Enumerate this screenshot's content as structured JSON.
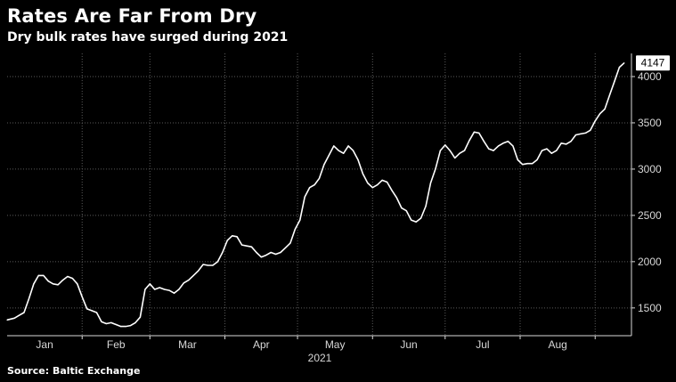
{
  "header": {
    "title": "Rates Are Far From Dry",
    "subtitle": "Dry bulk rates have surged during 2021"
  },
  "footer": {
    "source": "Source: Baltic Exchange"
  },
  "colors": {
    "background": "#000000",
    "line": "#ffffff",
    "grid": "#5a5a5a",
    "text": "#ffffff"
  },
  "chart_data": {
    "type": "line",
    "title": "Rates Are Far From Dry",
    "subtitle": "Dry bulk rates have surged during 2021",
    "xlabel": "2021",
    "ylabel": "",
    "x_tick_labels": [
      "Jan",
      "Feb",
      "Mar",
      "Apr",
      "May",
      "Jun",
      "Jul",
      "Aug"
    ],
    "y_ticks": [
      1500,
      2000,
      2500,
      3000,
      3500,
      4000
    ],
    "ylim": [
      1200,
      4250
    ],
    "grid": true,
    "y_axis_side": "right",
    "last_value_label": "4147",
    "series": [
      {
        "values": [
          [
            "2021-01-01",
            1370
          ],
          [
            "2021-01-04",
            1390
          ],
          [
            "2021-01-06",
            1420
          ],
          [
            "2021-01-08",
            1450
          ],
          [
            "2021-01-10",
            1600
          ],
          [
            "2021-01-12",
            1760
          ],
          [
            "2021-01-14",
            1850
          ],
          [
            "2021-01-16",
            1850
          ],
          [
            "2021-01-18",
            1790
          ],
          [
            "2021-01-20",
            1760
          ],
          [
            "2021-01-22",
            1750
          ],
          [
            "2021-01-24",
            1800
          ],
          [
            "2021-01-26",
            1840
          ],
          [
            "2021-01-28",
            1820
          ],
          [
            "2021-01-30",
            1760
          ],
          [
            "2021-02-01",
            1620
          ],
          [
            "2021-02-03",
            1490
          ],
          [
            "2021-02-05",
            1470
          ],
          [
            "2021-02-07",
            1450
          ],
          [
            "2021-02-09",
            1350
          ],
          [
            "2021-02-11",
            1330
          ],
          [
            "2021-02-13",
            1340
          ],
          [
            "2021-02-15",
            1320
          ],
          [
            "2021-02-17",
            1300
          ],
          [
            "2021-02-19",
            1300
          ],
          [
            "2021-02-21",
            1310
          ],
          [
            "2021-02-23",
            1340
          ],
          [
            "2021-02-25",
            1400
          ],
          [
            "2021-02-27",
            1700
          ],
          [
            "2021-03-01",
            1760
          ],
          [
            "2021-03-03",
            1700
          ],
          [
            "2021-03-05",
            1720
          ],
          [
            "2021-03-07",
            1700
          ],
          [
            "2021-03-09",
            1690
          ],
          [
            "2021-03-11",
            1660
          ],
          [
            "2021-03-13",
            1700
          ],
          [
            "2021-03-15",
            1770
          ],
          [
            "2021-03-17",
            1800
          ],
          [
            "2021-03-19",
            1850
          ],
          [
            "2021-03-21",
            1900
          ],
          [
            "2021-03-23",
            1970
          ],
          [
            "2021-03-25",
            1960
          ],
          [
            "2021-03-27",
            1960
          ],
          [
            "2021-03-29",
            2000
          ],
          [
            "2021-03-31",
            2100
          ],
          [
            "2021-04-02",
            2230
          ],
          [
            "2021-04-04",
            2280
          ],
          [
            "2021-04-06",
            2270
          ],
          [
            "2021-04-08",
            2180
          ],
          [
            "2021-04-10",
            2170
          ],
          [
            "2021-04-12",
            2160
          ],
          [
            "2021-04-14",
            2100
          ],
          [
            "2021-04-16",
            2050
          ],
          [
            "2021-04-18",
            2070
          ],
          [
            "2021-04-20",
            2100
          ],
          [
            "2021-04-22",
            2080
          ],
          [
            "2021-04-24",
            2100
          ],
          [
            "2021-04-26",
            2150
          ],
          [
            "2021-04-28",
            2200
          ],
          [
            "2021-04-30",
            2350
          ],
          [
            "2021-05-02",
            2450
          ],
          [
            "2021-05-04",
            2700
          ],
          [
            "2021-05-06",
            2800
          ],
          [
            "2021-05-08",
            2830
          ],
          [
            "2021-05-10",
            2900
          ],
          [
            "2021-05-12",
            3050
          ],
          [
            "2021-05-14",
            3150
          ],
          [
            "2021-05-16",
            3250
          ],
          [
            "2021-05-18",
            3200
          ],
          [
            "2021-05-20",
            3170
          ],
          [
            "2021-05-22",
            3250
          ],
          [
            "2021-05-24",
            3200
          ],
          [
            "2021-05-26",
            3100
          ],
          [
            "2021-05-28",
            2950
          ],
          [
            "2021-05-30",
            2850
          ],
          [
            "2021-06-01",
            2800
          ],
          [
            "2021-06-03",
            2830
          ],
          [
            "2021-06-05",
            2880
          ],
          [
            "2021-06-07",
            2860
          ],
          [
            "2021-06-09",
            2770
          ],
          [
            "2021-06-11",
            2690
          ],
          [
            "2021-06-13",
            2580
          ],
          [
            "2021-06-15",
            2550
          ],
          [
            "2021-06-17",
            2450
          ],
          [
            "2021-06-19",
            2430
          ],
          [
            "2021-06-21",
            2470
          ],
          [
            "2021-06-23",
            2600
          ],
          [
            "2021-06-25",
            2850
          ],
          [
            "2021-06-27",
            3000
          ],
          [
            "2021-06-29",
            3200
          ],
          [
            "2021-07-01",
            3260
          ],
          [
            "2021-07-03",
            3200
          ],
          [
            "2021-07-05",
            3120
          ],
          [
            "2021-07-07",
            3170
          ],
          [
            "2021-07-09",
            3200
          ],
          [
            "2021-07-11",
            3310
          ],
          [
            "2021-07-13",
            3400
          ],
          [
            "2021-07-15",
            3390
          ],
          [
            "2021-07-17",
            3300
          ],
          [
            "2021-07-19",
            3220
          ],
          [
            "2021-07-21",
            3200
          ],
          [
            "2021-07-23",
            3250
          ],
          [
            "2021-07-25",
            3280
          ],
          [
            "2021-07-27",
            3300
          ],
          [
            "2021-07-29",
            3250
          ],
          [
            "2021-07-31",
            3100
          ],
          [
            "2021-08-02",
            3050
          ],
          [
            "2021-08-04",
            3060
          ],
          [
            "2021-08-06",
            3060
          ],
          [
            "2021-08-08",
            3100
          ],
          [
            "2021-08-10",
            3200
          ],
          [
            "2021-08-12",
            3220
          ],
          [
            "2021-08-14",
            3170
          ],
          [
            "2021-08-16",
            3200
          ],
          [
            "2021-08-18",
            3280
          ],
          [
            "2021-08-20",
            3270
          ],
          [
            "2021-08-22",
            3300
          ],
          [
            "2021-08-24",
            3370
          ],
          [
            "2021-08-26",
            3380
          ],
          [
            "2021-08-28",
            3390
          ],
          [
            "2021-08-30",
            3420
          ],
          [
            "2021-09-01",
            3520
          ],
          [
            "2021-09-03",
            3600
          ],
          [
            "2021-09-05",
            3650
          ],
          [
            "2021-09-07",
            3800
          ],
          [
            "2021-09-09",
            3950
          ],
          [
            "2021-09-11",
            4100
          ],
          [
            "2021-09-13",
            4147
          ]
        ]
      }
    ]
  }
}
